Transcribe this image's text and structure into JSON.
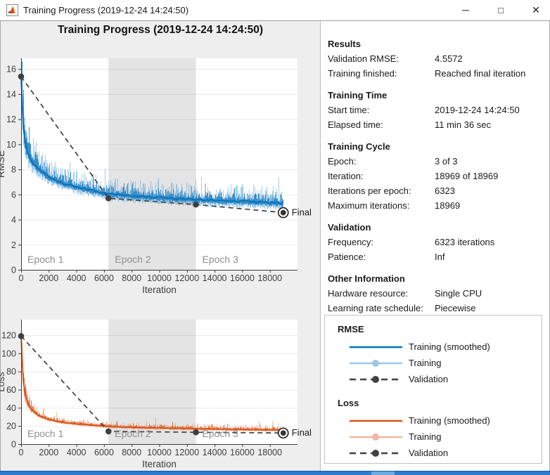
{
  "window": {
    "title": "Training Progress (2019-12-24 14:24:50)",
    "controls": {
      "minimize": "─",
      "maximize": "□",
      "close": "✕"
    }
  },
  "header": {
    "title": "Training Progress (2019-12-24 14:24:50)"
  },
  "info_panel": {
    "sections": [
      {
        "heading": "Results",
        "rows": [
          [
            "Validation RMSE:",
            "4.5572"
          ],
          [
            "Training finished:",
            "Reached final iteration"
          ]
        ]
      },
      {
        "heading": "Training Time",
        "rows": [
          [
            "Start time:",
            "2019-12-24 14:24:50"
          ],
          [
            "Elapsed time:",
            "11 min 36 sec"
          ]
        ]
      },
      {
        "heading": "Training Cycle",
        "rows": [
          [
            "Epoch:",
            "3 of 3"
          ],
          [
            "Iteration:",
            "18969 of 18969"
          ],
          [
            "Iterations per epoch:",
            "6323"
          ],
          [
            "Maximum iterations:",
            "18969"
          ]
        ]
      },
      {
        "heading": "Validation",
        "rows": [
          [
            "Frequency:",
            "6323 iterations"
          ],
          [
            "Patience:",
            "Inf"
          ]
        ]
      },
      {
        "heading": "Other Information",
        "rows": [
          [
            "Hardware resource:",
            "Single CPU"
          ],
          [
            "Learning rate schedule:",
            "Piecewise"
          ]
        ]
      }
    ]
  },
  "legend": {
    "groups": [
      {
        "heading": "RMSE",
        "entries": [
          {
            "label": "Training (smoothed)",
            "style": "solid",
            "color": "#0072bd"
          },
          {
            "label": "Training",
            "style": "solid-dot",
            "color": "#9dc7e8"
          },
          {
            "label": "Validation",
            "style": "dashed-dot",
            "color": "#404040"
          }
        ]
      },
      {
        "heading": "Loss",
        "entries": [
          {
            "label": "Training (smoothed)",
            "style": "solid",
            "color": "#d95319"
          },
          {
            "label": "Training",
            "style": "solid-dot",
            "color": "#f5b79e"
          },
          {
            "label": "Validation",
            "style": "dashed-dot",
            "color": "#404040"
          }
        ]
      }
    ]
  },
  "chart_data": [
    {
      "type": "line",
      "title": "",
      "xlabel": "Iteration",
      "ylabel": "RMSE",
      "xlim": [
        0,
        20000
      ],
      "ylim": [
        0,
        16.85
      ],
      "xticks": [
        0,
        2000,
        4000,
        6000,
        8000,
        10000,
        12000,
        14000,
        16000,
        18000
      ],
      "yticks": [
        0,
        2,
        4,
        6,
        8,
        10,
        12,
        14,
        16
      ],
      "grid": true,
      "epochs": [
        {
          "label": "Epoch 1",
          "start": 0,
          "end": 6323,
          "shaded": false
        },
        {
          "label": "Epoch 2",
          "start": 6323,
          "end": 12646,
          "shaded": true
        },
        {
          "label": "Epoch 3",
          "start": 12646,
          "end": 18969,
          "shaded": false
        }
      ],
      "series": [
        {
          "name": "Training (smoothed)",
          "style": "smoothed",
          "color": "#0072bd",
          "anchors": [
            [
              0,
              15.4
            ],
            [
              80,
              12.5
            ],
            [
              200,
              10.6
            ],
            [
              400,
              9.6
            ],
            [
              700,
              8.8
            ],
            [
              1200,
              8.1
            ],
            [
              2000,
              7.4
            ],
            [
              3000,
              6.9
            ],
            [
              4200,
              6.55
            ],
            [
              5500,
              6.25
            ],
            [
              6323,
              6.05
            ],
            [
              8000,
              5.9
            ],
            [
              10000,
              5.75
            ],
            [
              12646,
              5.6
            ],
            [
              15000,
              5.5
            ],
            [
              17000,
              5.42
            ],
            [
              18969,
              5.3
            ]
          ]
        },
        {
          "name": "Training",
          "style": "noisy",
          "color": "#4a9bd5",
          "color_inner": "#2f87c6",
          "noise": {
            "base": 1.3,
            "extra": 3.4,
            "tau": 650,
            "seed": 13,
            "spike": 1.3
          }
        },
        {
          "name": "Validation",
          "style": "dashed-markers",
          "color": "#3f3f3f",
          "points": [
            [
              0,
              15.4
            ],
            [
              6323,
              5.7
            ],
            [
              12646,
              5.2
            ],
            [
              18969,
              4.5572
            ]
          ]
        }
      ],
      "final_label": "Final"
    },
    {
      "type": "line",
      "title": "",
      "xlabel": "Iteration",
      "ylabel": "Loss",
      "xlim": [
        0,
        20000
      ],
      "ylim": [
        0,
        137
      ],
      "xticks": [
        0,
        2000,
        4000,
        6000,
        8000,
        10000,
        12000,
        14000,
        16000,
        18000
      ],
      "yticks": [
        0,
        20,
        40,
        60,
        80,
        100,
        120
      ],
      "grid": true,
      "epochs": [
        {
          "label": "Epoch 1",
          "start": 0,
          "end": 6323,
          "shaded": false
        },
        {
          "label": "Epoch 2",
          "start": 6323,
          "end": 12646,
          "shaded": true
        },
        {
          "label": "Epoch 3",
          "start": 12646,
          "end": 18969,
          "shaded": false
        }
      ],
      "series": [
        {
          "name": "Training (smoothed)",
          "style": "smoothed",
          "color": "#d95319",
          "anchors": [
            [
              0,
              118
            ],
            [
              80,
              85
            ],
            [
              200,
              62
            ],
            [
              400,
              48
            ],
            [
              700,
              39
            ],
            [
              1200,
              32
            ],
            [
              2000,
              27
            ],
            [
              3000,
              24
            ],
            [
              4200,
              22
            ],
            [
              5500,
              20.5
            ],
            [
              6323,
              19.5
            ],
            [
              8000,
              18.5
            ],
            [
              10000,
              17.8
            ],
            [
              12646,
              17
            ],
            [
              15000,
              16.3
            ],
            [
              17000,
              15.9
            ],
            [
              18969,
              15.5
            ]
          ]
        },
        {
          "name": "Training",
          "style": "noisy",
          "color": "#e8824f",
          "color_inner": "#e06a31",
          "noise": {
            "base": 5.5,
            "extra": 42,
            "tau": 380,
            "seed": 21,
            "spike": 1.6
          }
        },
        {
          "name": "Validation",
          "style": "dashed-markers",
          "color": "#3f3f3f",
          "points": [
            [
              0,
              119
            ],
            [
              6323,
              14
            ],
            [
              12646,
              13
            ],
            [
              18969,
              12.2
            ]
          ]
        }
      ],
      "final_label": "Final"
    }
  ]
}
